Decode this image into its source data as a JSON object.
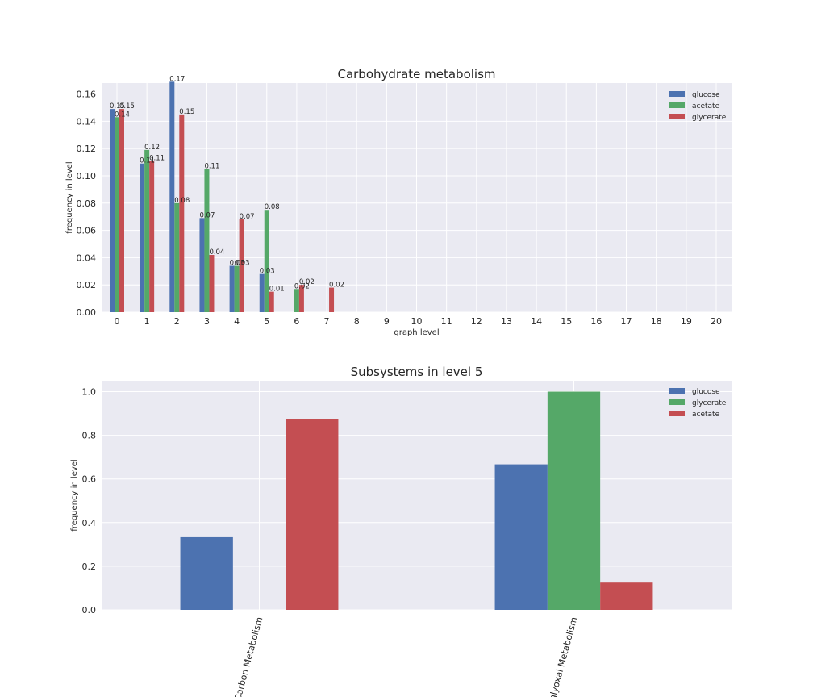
{
  "colors": {
    "background": "#eaeaf2",
    "grid": "#ffffff",
    "blue": "#4c72b0",
    "green": "#55a868",
    "red": "#c44e52",
    "text": "#262626"
  },
  "chart_data": [
    {
      "type": "bar",
      "title": "Carbohydrate metabolism",
      "xlabel": "graph level",
      "ylabel": "frequency in level",
      "categories": [
        "0",
        "1",
        "2",
        "3",
        "4",
        "5",
        "6",
        "7",
        "8",
        "9",
        "10",
        "11",
        "12",
        "13",
        "14",
        "15",
        "16",
        "17",
        "18",
        "19",
        "20"
      ],
      "ylim": [
        0,
        0.168
      ],
      "yticks": [
        "0.00",
        "0.02",
        "0.04",
        "0.06",
        "0.08",
        "0.10",
        "0.12",
        "0.14",
        "0.16"
      ],
      "legend_position": "top-right",
      "grid": true,
      "series": [
        {
          "name": "glucose",
          "color": "#4c72b0",
          "values": [
            0.149,
            0.109,
            0.169,
            0.069,
            0.034,
            0.028,
            0,
            0,
            0,
            0,
            0,
            0,
            0,
            0,
            0,
            0,
            0,
            0,
            0,
            0,
            0
          ],
          "labels": [
            "0.15",
            "0.11",
            "0.17",
            "0.07",
            "0.03",
            "0.03",
            "",
            "",
            "",
            "",
            "",
            "",
            "",
            "",
            "",
            "",
            "",
            "",
            "",
            "",
            ""
          ]
        },
        {
          "name": "acetate",
          "color": "#55a868",
          "values": [
            0.143,
            0.119,
            0.08,
            0.105,
            0.034,
            0.075,
            0.017,
            0,
            0,
            0,
            0,
            0,
            0,
            0,
            0,
            0,
            0,
            0,
            0,
            0,
            0
          ],
          "labels": [
            "0.14",
            "0.12",
            "0.08",
            "0.11",
            "0.03",
            "0.08",
            "0.02",
            "",
            "",
            "",
            "",
            "",
            "",
            "",
            "",
            "",
            "",
            "",
            "",
            "",
            ""
          ]
        },
        {
          "name": "glycerate",
          "color": "#c44e52",
          "values": [
            0.149,
            0.111,
            0.145,
            0.042,
            0.068,
            0.015,
            0.02,
            0.018,
            0,
            0,
            0,
            0,
            0,
            0,
            0,
            0,
            0,
            0,
            0,
            0,
            0
          ],
          "labels": [
            "0.15",
            "0.11",
            "0.15",
            "0.04",
            "0.07",
            "0.01",
            "0.02",
            "0.02",
            "",
            "",
            "",
            "",
            "",
            "",
            "",
            "",
            "",
            "",
            "",
            "",
            ""
          ]
        }
      ]
    },
    {
      "type": "bar",
      "title": "Subsystems in level 5",
      "xlabel": "",
      "ylabel": "frequency in level",
      "categories": [
        "Central Carbon Metabolism",
        "Glyoxylate, Dicarboxylate Metabolism"
      ],
      "category_labels_visible": [
        "Carbon Metabolism",
        "glyoxal Metabolism"
      ],
      "ylim": [
        0,
        1.05
      ],
      "yticks": [
        "0.0",
        "0.2",
        "0.4",
        "0.6",
        "0.8",
        "1.0"
      ],
      "legend_position": "top-right",
      "grid": true,
      "series": [
        {
          "name": "glucose",
          "color": "#4c72b0",
          "values": [
            0.333,
            0.667
          ]
        },
        {
          "name": "glycerate",
          "color": "#55a868",
          "values": [
            0,
            1.0
          ]
        },
        {
          "name": "acetate",
          "color": "#c44e52",
          "values": [
            0.875,
            0.125
          ]
        }
      ]
    }
  ]
}
